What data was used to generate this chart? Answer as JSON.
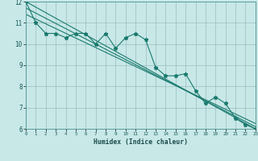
{
  "xlabel": "Humidex (Indice chaleur)",
  "bg_color": "#c8e8e8",
  "grid_color": "#9bbcbc",
  "line_color": "#1a7a6e",
  "xlim": [
    0,
    23
  ],
  "ylim": [
    6,
    12
  ],
  "xticks": [
    0,
    1,
    2,
    3,
    4,
    5,
    6,
    7,
    8,
    9,
    10,
    11,
    12,
    13,
    14,
    15,
    16,
    17,
    18,
    19,
    20,
    21,
    22,
    23
  ],
  "yticks": [
    6,
    7,
    8,
    9,
    10,
    11,
    12
  ],
  "data_x": [
    0,
    1,
    2,
    3,
    4,
    5,
    6,
    7,
    8,
    9,
    10,
    11,
    12,
    13,
    14,
    15,
    16,
    17,
    18,
    19,
    20,
    21,
    22,
    23
  ],
  "data_y": [
    12.0,
    11.0,
    10.5,
    10.5,
    10.3,
    10.5,
    10.5,
    10.0,
    10.5,
    9.8,
    10.3,
    10.5,
    10.2,
    8.9,
    8.5,
    8.5,
    8.6,
    7.8,
    7.2,
    7.5,
    7.2,
    6.5,
    6.2,
    6.0
  ],
  "trend_lines": [
    {
      "x0": 0,
      "y0": 12.0,
      "x1": 23,
      "y1": 6.0
    },
    {
      "x0": 0,
      "y0": 11.7,
      "x1": 23,
      "y1": 6.1
    },
    {
      "x0": 0,
      "y0": 11.4,
      "x1": 23,
      "y1": 6.25
    }
  ]
}
